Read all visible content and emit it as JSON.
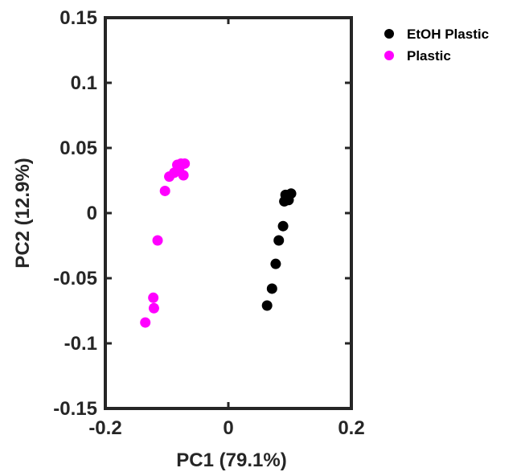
{
  "chart_data": {
    "type": "scatter",
    "title": "",
    "xlabel": "PC1  (79.1%)",
    "ylabel": "PC2  (12.9%)",
    "xlim": [
      -0.2,
      0.2
    ],
    "ylim": [
      -0.15,
      0.15
    ],
    "xticks": [
      -0.2,
      0,
      0.2
    ],
    "xtick_labels": [
      "-0.2",
      "0",
      "0.2"
    ],
    "yticks": [
      -0.15,
      -0.1,
      -0.05,
      0,
      0.05,
      0.1,
      0.15
    ],
    "ytick_labels": [
      "-0.15",
      "-0.1",
      "-0.05",
      "0",
      "0.05",
      "0.1",
      "0.15"
    ],
    "grid": false,
    "legend_position": "top-right outside",
    "series": [
      {
        "name": "EtOH Plastic",
        "color": "#000000",
        "points": [
          {
            "x": 0.063,
            "y": -0.071
          },
          {
            "x": 0.071,
            "y": -0.058
          },
          {
            "x": 0.077,
            "y": -0.039
          },
          {
            "x": 0.082,
            "y": -0.021
          },
          {
            "x": 0.089,
            "y": -0.01
          },
          {
            "x": 0.091,
            "y": 0.009
          },
          {
            "x": 0.096,
            "y": 0.012
          },
          {
            "x": 0.102,
            "y": 0.015
          },
          {
            "x": 0.093,
            "y": 0.014
          },
          {
            "x": 0.098,
            "y": 0.01
          }
        ]
      },
      {
        "name": "Plastic",
        "color": "#ff00ff",
        "points": [
          {
            "x": -0.135,
            "y": -0.084
          },
          {
            "x": -0.121,
            "y": -0.073
          },
          {
            "x": -0.122,
            "y": -0.065
          },
          {
            "x": -0.115,
            "y": -0.021
          },
          {
            "x": -0.103,
            "y": 0.017
          },
          {
            "x": -0.096,
            "y": 0.028
          },
          {
            "x": -0.088,
            "y": 0.031
          },
          {
            "x": -0.083,
            "y": 0.037
          },
          {
            "x": -0.077,
            "y": 0.038
          },
          {
            "x": -0.071,
            "y": 0.038
          },
          {
            "x": -0.073,
            "y": 0.029
          },
          {
            "x": -0.08,
            "y": 0.034
          }
        ]
      }
    ]
  }
}
